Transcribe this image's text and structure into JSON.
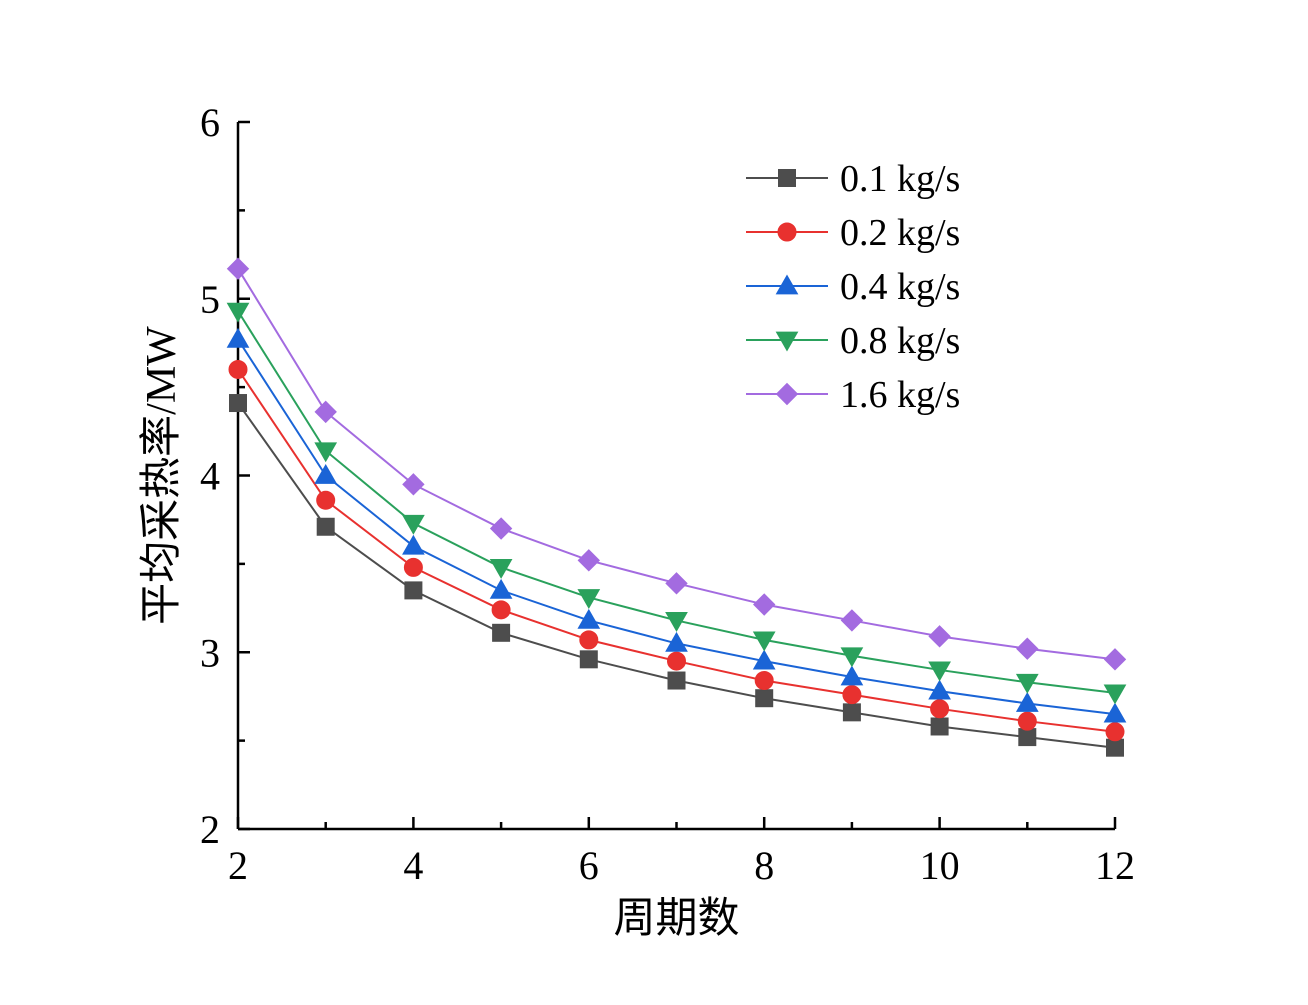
{
  "chart_data": {
    "type": "line",
    "title": "",
    "xlabel": "周期数",
    "ylabel": "平均采热率/MW",
    "xlim": [
      2,
      12
    ],
    "ylim": [
      2,
      6
    ],
    "xticks": [
      2,
      4,
      6,
      8,
      10,
      12
    ],
    "yticks": [
      2,
      3,
      4,
      5,
      6
    ],
    "x": [
      2,
      3,
      4,
      5,
      6,
      7,
      8,
      9,
      10,
      11,
      12
    ],
    "grid": false,
    "legend_position": "top-right",
    "series": [
      {
        "name": "0.1 kg/s",
        "color": "#4d4d4d",
        "marker": "square",
        "values": [
          4.41,
          3.71,
          3.35,
          3.11,
          2.96,
          2.84,
          2.74,
          2.66,
          2.58,
          2.52,
          2.46
        ]
      },
      {
        "name": "0.2 kg/s",
        "color": "#e8312f",
        "marker": "circle",
        "values": [
          4.6,
          3.86,
          3.48,
          3.24,
          3.07,
          2.95,
          2.84,
          2.76,
          2.68,
          2.61,
          2.55
        ]
      },
      {
        "name": "0.4 kg/s",
        "color": "#1a64d6",
        "marker": "triangle-up",
        "values": [
          4.77,
          4.0,
          3.6,
          3.35,
          3.18,
          3.05,
          2.95,
          2.86,
          2.78,
          2.71,
          2.65
        ]
      },
      {
        "name": "0.8 kg/s",
        "color": "#2aa15c",
        "marker": "triangle-down",
        "values": [
          4.93,
          4.14,
          3.73,
          3.48,
          3.31,
          3.18,
          3.07,
          2.98,
          2.9,
          2.83,
          2.77
        ]
      },
      {
        "name": "1.6 kg/s",
        "color": "#a36be0",
        "marker": "diamond",
        "values": [
          5.17,
          4.36,
          3.95,
          3.7,
          3.52,
          3.39,
          3.27,
          3.18,
          3.09,
          3.02,
          2.96
        ]
      }
    ]
  }
}
